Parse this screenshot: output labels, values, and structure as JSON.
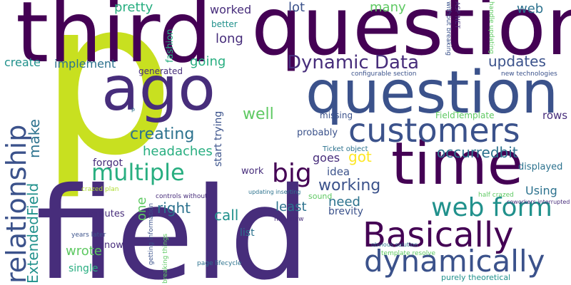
{
  "words": {
    "p": "p",
    "field": "field",
    "third": "third",
    "question": "question",
    "question2": "question",
    "ago": "ago",
    "time": "time",
    "customers": "customers",
    "basically": "Basically",
    "dynamically": "dynamically",
    "web_form": "web form",
    "multiple": "multiple",
    "big": "big",
    "relationship": "relationship",
    "extended_field": "ExtendedField",
    "dynamic_data": "Dynamic Data",
    "updates": "updates",
    "creating": "creating",
    "headaches": "headaches",
    "make": "make",
    "well": "well",
    "occurredbit": "occurredbit",
    "working": "working",
    "got": "got",
    "goes": "goes",
    "idea": "idea",
    "right": "right",
    "call": "call",
    "least": "least",
    "need": "need",
    "brevity": "brevity",
    "wrote": "wrote",
    "using": "Using",
    "pretty": "pretty",
    "worked": "worked",
    "lot": "lot",
    "many": "many",
    "web": "web",
    "long": "long",
    "going": "going",
    "implement": "implement",
    "create": "create",
    "one": "one",
    "better": "better",
    "fashion": "fashion",
    "generated": "generated",
    "start_trying": "start trying",
    "rows": "rows",
    "displayed": "displayed",
    "missing": "missing",
    "field_template": "FieldTemplate",
    "probably": "probably",
    "forgot": "forgot",
    "work": "work",
    "sound": "sound",
    "ticket_object": "Ticket object",
    "minutes": "minutes",
    "list": "list",
    "now": "now",
    "single": "single",
    "years_later": "years later",
    "getting_information": "getting information",
    "breaking_things": "breaking things",
    "page_lifecycle": "page lifecycle",
    "nifty_new": "nifty new",
    "obvious_solution": "obvious solution",
    "template_resolve": "template resolve",
    "purely_theoretical": "purely theoretical",
    "crazed_plan": "crazed plan",
    "controls_without": "controls without",
    "updating_inserting": "updating inserting",
    "half_crazed": "half crazed",
    "coworkers_interrupted": "coworkers interrupted",
    "configurable_section": "configurable section",
    "new_technologies": "new technologies",
    "without_breaking": "without breaking",
    "asp_net": "ASP NET",
    "handle_updating": "handle updating",
    "small_p": "p"
  },
  "colors": {
    "dark_purple": "#440154",
    "indigo": "#472d7b",
    "slate_blue": "#3b528b",
    "steel_blue": "#2c728e",
    "teal": "#21918c",
    "sea_green": "#28ae80",
    "green": "#5ec962",
    "lime": "#addc30",
    "chartreuse": "#c8e020",
    "yellow": "#fde725"
  }
}
